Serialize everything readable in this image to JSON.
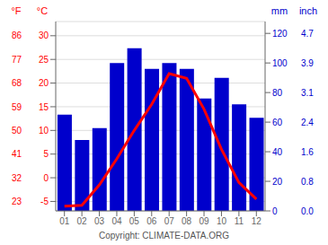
{
  "chart_data": {
    "type": "bar",
    "categories": [
      "01",
      "02",
      "03",
      "04",
      "05",
      "06",
      "07",
      "08",
      "09",
      "10",
      "11",
      "12"
    ],
    "series": [
      {
        "type": "bar",
        "axis": "y2",
        "color": "#0000cc",
        "values": [
          65,
          48,
          56,
          100,
          110,
          96,
          100,
          96,
          76,
          90,
          72,
          63
        ]
      },
      {
        "type": "line",
        "color": "#ff0000",
        "values": [
          -6.0,
          -5.8,
          -1.5,
          4.0,
          10.0,
          15.5,
          22.0,
          21.0,
          14.5,
          6.0,
          -1.0,
          -4.5
        ]
      }
    ],
    "ylabel": "°C",
    "ylim": [
      -7,
      33
    ],
    "yticks": [
      -5,
      0,
      5,
      10,
      15,
      20,
      25,
      30
    ],
    "y_alt_label": "°F",
    "y_alt_ticks": [
      {
        "value": -5,
        "label": "23"
      },
      {
        "value": 0,
        "label": "32"
      },
      {
        "value": 5,
        "label": "41"
      },
      {
        "value": 10,
        "label": "50"
      },
      {
        "value": 15,
        "label": "59"
      },
      {
        "value": 20,
        "label": "68"
      },
      {
        "value": 25,
        "label": "77"
      },
      {
        "value": 30,
        "label": "86"
      }
    ],
    "y2label": "mm",
    "y2lim": [
      0,
      128
    ],
    "y2ticks": [
      0,
      20,
      40,
      60,
      80,
      100,
      120
    ],
    "y2_alt_label": "inch",
    "y2_alt_ticks": [
      {
        "value": 0,
        "label": "0.0"
      },
      {
        "value": 20,
        "label": "0.8"
      },
      {
        "value": 40,
        "label": "1.6"
      },
      {
        "value": 60,
        "label": "2.4"
      },
      {
        "value": 80,
        "label": "3.1"
      },
      {
        "value": 100,
        "label": "3.9"
      },
      {
        "value": 120,
        "label": "4.7"
      }
    ],
    "grid": true,
    "annotations": [
      "Copyright: CLIMATE-DATA.ORG"
    ]
  }
}
